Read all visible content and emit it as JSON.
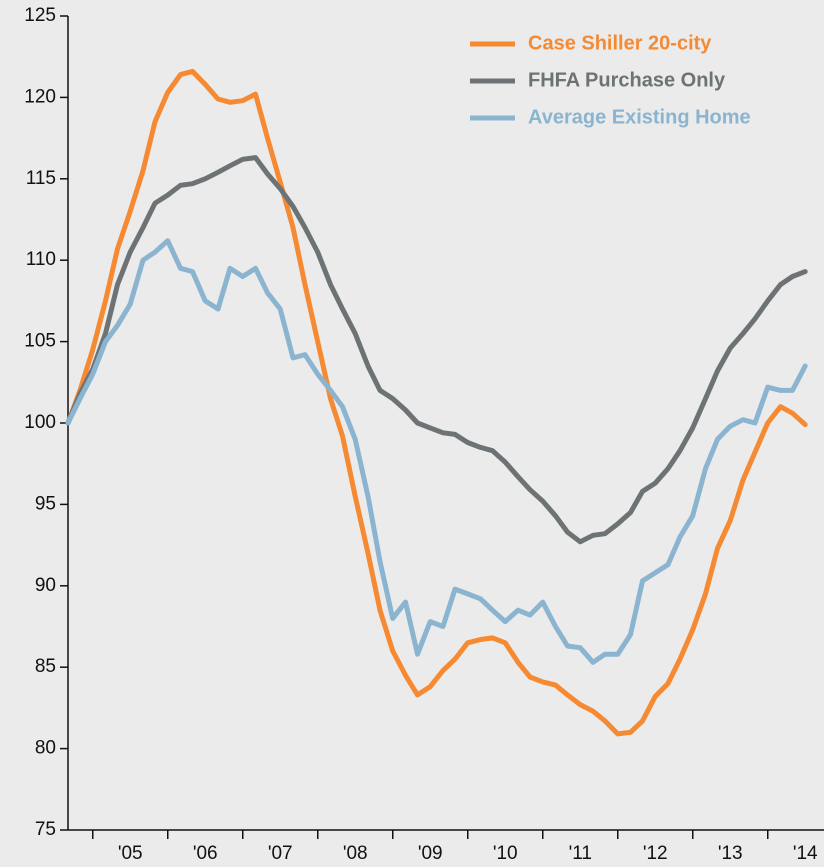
{
  "chart_data": {
    "type": "line",
    "x": [
      2004.67,
      2004.83,
      2005.0,
      2005.17,
      2005.33,
      2005.5,
      2005.67,
      2005.83,
      2006.0,
      2006.17,
      2006.33,
      2006.5,
      2006.67,
      2006.83,
      2007.0,
      2007.17,
      2007.33,
      2007.5,
      2007.67,
      2007.83,
      2008.0,
      2008.17,
      2008.33,
      2008.5,
      2008.67,
      2008.83,
      2009.0,
      2009.17,
      2009.33,
      2009.5,
      2009.67,
      2009.83,
      2010.0,
      2010.17,
      2010.33,
      2010.5,
      2010.67,
      2010.83,
      2011.0,
      2011.17,
      2011.33,
      2011.5,
      2011.67,
      2011.83,
      2012.0,
      2012.17,
      2012.33,
      2012.5,
      2012.67,
      2012.83,
      2013.0,
      2013.17,
      2013.33,
      2013.5,
      2013.67,
      2013.83,
      2014.0,
      2014.17,
      2014.33,
      2014.5
    ],
    "series": [
      {
        "name": "Case Shiller 20-city",
        "color": "#f58a33",
        "values": [
          100,
          102.0,
          104.5,
          107.5,
          110.7,
          113.0,
          115.5,
          118.5,
          120.3,
          121.4,
          121.6,
          120.8,
          119.9,
          119.7,
          119.8,
          120.2,
          117.5,
          114.8,
          112.0,
          108.5,
          105.0,
          101.5,
          99.2,
          95.5,
          92.0,
          88.5,
          86.0,
          84.5,
          83.3,
          83.8,
          84.8,
          85.5,
          86.5,
          86.7,
          86.8,
          86.5,
          85.3,
          84.4,
          84.1,
          83.9,
          83.3,
          82.7,
          82.3,
          81.7,
          80.9,
          81.0,
          81.7,
          83.2,
          84.0,
          85.5,
          87.3,
          89.5,
          92.3,
          94.0,
          96.5,
          98.2,
          100.0,
          101.0,
          100.6,
          99.9
        ]
      },
      {
        "name": "FHFA Purchase Only",
        "color": "#6d7375",
        "values": [
          100,
          101.8,
          103.3,
          105.5,
          108.5,
          110.5,
          112.0,
          113.5,
          114.0,
          114.6,
          114.7,
          115.0,
          115.4,
          115.8,
          116.2,
          116.3,
          115.3,
          114.4,
          113.3,
          112.0,
          110.5,
          108.5,
          107.0,
          105.5,
          103.5,
          102.0,
          101.5,
          100.8,
          100.0,
          99.7,
          99.4,
          99.3,
          98.8,
          98.5,
          98.3,
          97.6,
          96.7,
          95.9,
          95.2,
          94.3,
          93.3,
          92.7,
          93.1,
          93.2,
          93.8,
          94.5,
          95.8,
          96.3,
          97.2,
          98.3,
          99.7,
          101.5,
          103.2,
          104.6,
          105.5,
          106.4,
          107.5,
          108.5,
          109.0,
          109.3
        ]
      },
      {
        "name": "Average Existing Home",
        "color": "#8ab4cf",
        "values": [
          100,
          101.5,
          103.0,
          105.0,
          106.0,
          107.3,
          110.0,
          110.5,
          111.2,
          109.5,
          109.3,
          107.5,
          107.0,
          109.5,
          109.0,
          109.5,
          108.0,
          107.0,
          104.0,
          104.2,
          103.0,
          102.0,
          101.0,
          99.0,
          95.5,
          91.5,
          88.0,
          89.0,
          85.8,
          87.8,
          87.5,
          89.8,
          89.5,
          89.2,
          88.5,
          87.8,
          88.5,
          88.2,
          89.0,
          87.5,
          86.3,
          86.2,
          85.3,
          85.8,
          85.8,
          87.0,
          90.3,
          90.8,
          91.3,
          93.0,
          94.3,
          97.2,
          99.0,
          99.8,
          100.2,
          100.0,
          102.2,
          102.0,
          102.0,
          103.5
        ]
      }
    ],
    "xlim": [
      2004.67,
      2014.75
    ],
    "xticks": [
      {
        "value": 2005,
        "label": "'05"
      },
      {
        "value": 2006,
        "label": "'06"
      },
      {
        "value": 2007,
        "label": "'07"
      },
      {
        "value": 2008,
        "label": "'08"
      },
      {
        "value": 2009,
        "label": "'09"
      },
      {
        "value": 2010,
        "label": "'10"
      },
      {
        "value": 2011,
        "label": "'11"
      },
      {
        "value": 2012,
        "label": "'12"
      },
      {
        "value": 2013,
        "label": "'13"
      },
      {
        "value": 2014,
        "label": "'14"
      }
    ],
    "ylim": [
      75,
      125
    ],
    "yticks": [
      75,
      80,
      85,
      90,
      95,
      100,
      105,
      110,
      115,
      120,
      125
    ],
    "legend": "upper right",
    "grid": false
  }
}
